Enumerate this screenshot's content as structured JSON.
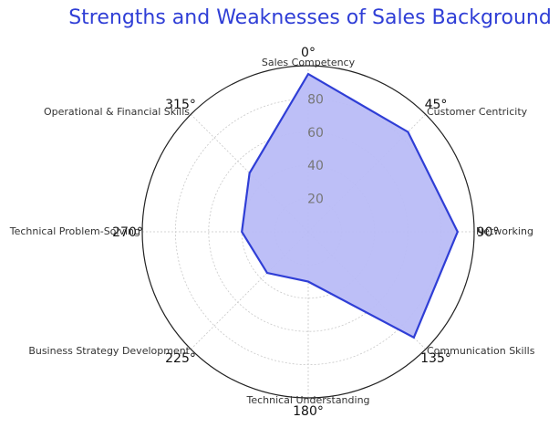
{
  "chart_data": {
    "type": "radar",
    "title": "Strengths and Weaknesses of Sales Background",
    "categories": [
      "Sales Competency",
      "Customer Centricity",
      "Networking",
      "Communication Skills",
      "Technical Understanding",
      "Business Strategy Development",
      "Technical Problem-Solving",
      "Operational & Financial Skills"
    ],
    "series": [
      {
        "values": [
          95,
          85,
          90,
          90,
          30,
          35,
          40,
          50
        ]
      }
    ],
    "r_range": [
      0,
      100
    ],
    "r_ticks": [
      "20",
      "40",
      "60",
      "80"
    ],
    "angle_ticks": [
      "0°",
      "45°",
      "90°",
      "135°",
      "180°",
      "225°",
      "270°",
      "315°"
    ],
    "grid": true,
    "colors": {
      "title": "#2f3ed6",
      "line": "#2f3ed6",
      "fill": "#b9bcf7",
      "grid": "#c8c8c8",
      "frame": "#222222",
      "text": "#333333",
      "rtick": "#777777"
    }
  }
}
